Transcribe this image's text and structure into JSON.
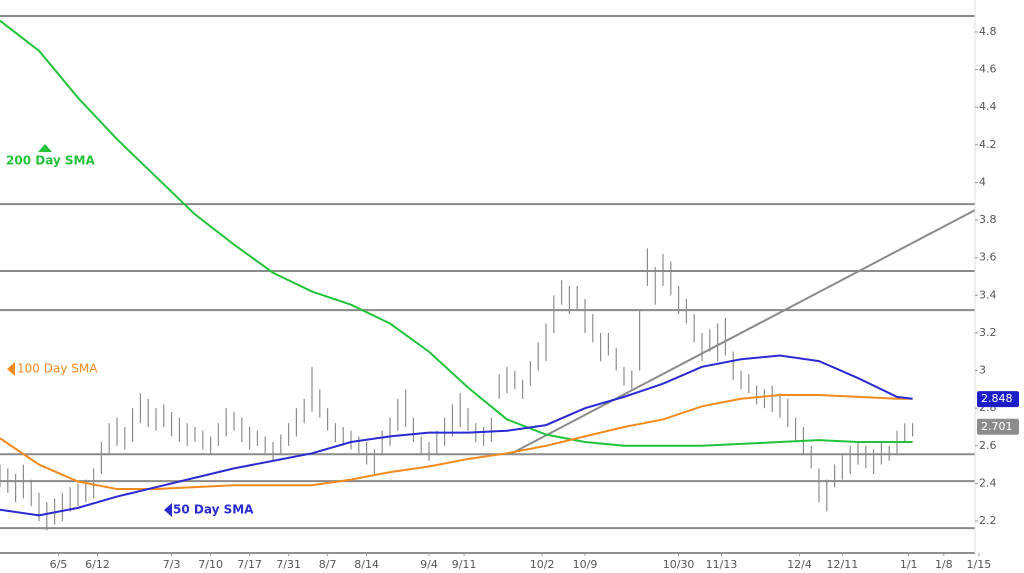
{
  "chart_data": {
    "type": "ohlc",
    "ylim": [
      2.03,
      4.97
    ],
    "yticks": [
      2.2,
      2.4,
      2.6,
      2.8,
      3,
      3.2,
      3.4,
      3.6,
      3.8,
      4,
      4.2,
      4.4,
      4.6,
      4.8
    ],
    "xlim": [
      0,
      125
    ],
    "xticks": [
      {
        "value": 7.5,
        "label": "6/5"
      },
      {
        "value": 12.5,
        "label": "6/12"
      },
      {
        "value": 22,
        "label": "7/3"
      },
      {
        "value": 27,
        "label": "7/10"
      },
      {
        "value": 32,
        "label": "7/17"
      },
      {
        "value": 37,
        "label": "7/31"
      },
      {
        "value": 42,
        "label": "8/7"
      },
      {
        "value": 47,
        "label": "8/14"
      },
      {
        "value": 55,
        "label": "9/4"
      },
      {
        "value": 59.5,
        "label": "9/11"
      },
      {
        "value": 69.5,
        "label": "10/2"
      },
      {
        "value": 75,
        "label": "10/9"
      },
      {
        "value": 87,
        "label": "10/30"
      },
      {
        "value": 92.5,
        "label": "11/13"
      },
      {
        "value": 102.5,
        "label": "12/4"
      },
      {
        "value": 108,
        "label": "12/11"
      },
      {
        "value": 116.5,
        "label": "1/1"
      },
      {
        "value": 121,
        "label": "1/8"
      },
      {
        "value": 125.5,
        "label": "1/15"
      }
    ],
    "bars": {
      "color": "#8c8c8c",
      "low": [
        2.38,
        2.35,
        2.3,
        2.32,
        2.28,
        2.2,
        2.15,
        2.18,
        2.2,
        2.25,
        2.28,
        2.3,
        2.32,
        2.45,
        2.55,
        2.6,
        2.58,
        2.62,
        2.72,
        2.7,
        2.68,
        2.7,
        2.65,
        2.62,
        2.6,
        2.62,
        2.58,
        2.55,
        2.6,
        2.65,
        2.68,
        2.62,
        2.58,
        2.6,
        2.55,
        2.52,
        2.55,
        2.6,
        2.65,
        2.72,
        2.78,
        2.75,
        2.68,
        2.62,
        2.6,
        2.58,
        2.55,
        2.5,
        2.45,
        2.55,
        2.6,
        2.68,
        2.7,
        2.62,
        2.55,
        2.52,
        2.55,
        2.6,
        2.65,
        2.7,
        2.68,
        2.62,
        2.6,
        2.62,
        2.85,
        2.88,
        2.9,
        2.85,
        2.92,
        3.0,
        3.05,
        3.2,
        3.35,
        3.3,
        3.32,
        3.2,
        3.15,
        3.05,
        3.08,
        3.0,
        2.92,
        2.9,
        3.0,
        3.45,
        3.35,
        3.45,
        3.4,
        3.3,
        3.25,
        3.15,
        3.05,
        3.1,
        3.05,
        3.08,
        2.95,
        2.9,
        2.88,
        2.82,
        2.8,
        2.78,
        2.75,
        2.7,
        2.62,
        2.55,
        2.48,
        2.3,
        2.25,
        2.38,
        2.42,
        2.45,
        2.5,
        2.48,
        2.45,
        2.5,
        2.52,
        2.55,
        2.62,
        2.65
      ],
      "high": [
        2.5,
        2.48,
        2.45,
        2.5,
        2.42,
        2.35,
        2.3,
        2.32,
        2.35,
        2.38,
        2.4,
        2.42,
        2.48,
        2.62,
        2.72,
        2.75,
        2.7,
        2.8,
        2.88,
        2.85,
        2.8,
        2.82,
        2.78,
        2.75,
        2.72,
        2.7,
        2.68,
        2.65,
        2.72,
        2.8,
        2.78,
        2.75,
        2.7,
        2.68,
        2.65,
        2.62,
        2.66,
        2.72,
        2.8,
        2.85,
        3.02,
        2.9,
        2.8,
        2.72,
        2.7,
        2.68,
        2.65,
        2.62,
        2.58,
        2.68,
        2.75,
        2.85,
        2.9,
        2.75,
        2.65,
        2.62,
        2.68,
        2.75,
        2.82,
        2.88,
        2.8,
        2.72,
        2.7,
        2.75,
        2.98,
        3.02,
        3.0,
        2.95,
        3.05,
        3.15,
        3.25,
        3.4,
        3.48,
        3.45,
        3.45,
        3.38,
        3.3,
        3.2,
        3.2,
        3.12,
        3.02,
        3.0,
        3.32,
        3.65,
        3.55,
        3.62,
        3.58,
        3.45,
        3.38,
        3.3,
        3.2,
        3.22,
        3.25,
        3.28,
        3.1,
        3.0,
        2.98,
        2.92,
        2.9,
        2.92,
        2.88,
        2.85,
        2.75,
        2.7,
        2.6,
        2.48,
        2.42,
        2.5,
        2.55,
        2.6,
        2.62,
        2.6,
        2.58,
        2.62,
        2.6,
        2.68,
        2.72,
        2.72
      ]
    },
    "series": [
      {
        "name": "200 Day SMA",
        "color": "#22c33a",
        "x": [
          0,
          5,
          10,
          15,
          20,
          25,
          30,
          35,
          40,
          45,
          50,
          55,
          60,
          65,
          70,
          75,
          80,
          85,
          90,
          95,
          100,
          105,
          110,
          115,
          117
        ],
        "values": [
          4.86,
          4.7,
          4.45,
          4.23,
          4.03,
          3.83,
          3.67,
          3.52,
          3.42,
          3.35,
          3.25,
          3.1,
          2.91,
          2.74,
          2.66,
          2.62,
          2.6,
          2.6,
          2.6,
          2.61,
          2.62,
          2.63,
          2.62,
          2.62,
          2.62
        ]
      },
      {
        "name": "100  Day SMA",
        "color": "#f28a1e",
        "x": [
          0,
          5,
          10,
          15,
          20,
          25,
          30,
          35,
          40,
          45,
          50,
          55,
          60,
          65,
          70,
          75,
          80,
          85,
          90,
          95,
          100,
          105,
          110,
          115,
          117
        ],
        "values": [
          2.64,
          2.5,
          2.41,
          2.37,
          2.37,
          2.38,
          2.39,
          2.39,
          2.39,
          2.42,
          2.46,
          2.49,
          2.53,
          2.56,
          2.6,
          2.65,
          2.7,
          2.74,
          2.81,
          2.85,
          2.87,
          2.87,
          2.86,
          2.85,
          2.85
        ]
      },
      {
        "name": "50 Day SMA",
        "color": "#2a2ad0",
        "x": [
          0,
          5,
          10,
          15,
          20,
          25,
          30,
          35,
          40,
          45,
          50,
          55,
          60,
          65,
          70,
          75,
          80,
          85,
          90,
          95,
          100,
          105,
          110,
          115,
          117
        ],
        "values": [
          2.26,
          2.23,
          2.27,
          2.33,
          2.38,
          2.43,
          2.48,
          2.52,
          2.56,
          2.62,
          2.65,
          2.67,
          2.67,
          2.68,
          2.71,
          2.8,
          2.86,
          2.93,
          3.02,
          3.06,
          3.08,
          3.05,
          2.96,
          2.86,
          2.85
        ]
      }
    ],
    "hlines": [
      4.885,
      3.885,
      3.529,
      3.321,
      2.555,
      2.412,
      2.162
    ],
    "trendline": {
      "color": "#8a8a8a",
      "x": [
        65.4,
        125
      ],
      "values": [
        2.555,
        3.853
      ]
    },
    "markers": [
      {
        "value": 2.848,
        "color": "#1e1ec8"
      },
      {
        "value": 2.701,
        "color": "#8c8c8c"
      }
    ]
  }
}
